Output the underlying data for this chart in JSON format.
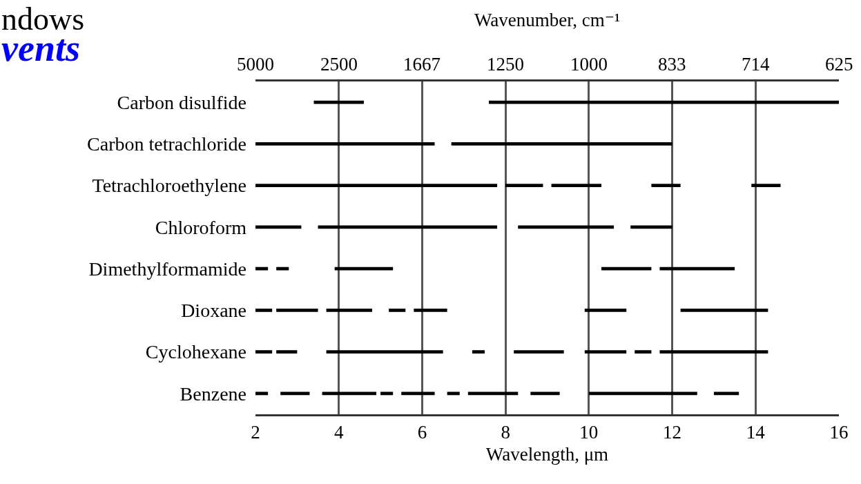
{
  "chart_data": {
    "type": "bar",
    "orientation": "horizontal",
    "xlabel": "Wavelength, μm",
    "x2label": "Wavenumber, cm⁻¹",
    "annotations": [
      "ndows",
      "vents",
      "5000",
      "2500",
      "1667",
      "1250",
      "1000",
      "833",
      "714",
      "625"
    ],
    "categories": [
      "Carbon disulfide",
      "Carbon tetrachloride",
      "Tetrachloroethylene",
      "Chloroform",
      "Dimethylformamide",
      "Dioxane",
      "Cyclohexane",
      "Benzene"
    ],
    "series": [
      {
        "color": "#000000",
        "base": [
          3.4,
          2,
          2,
          2,
          2,
          2,
          2,
          2
        ],
        "values": [
          1.2,
          4.3,
          5.8,
          1.1,
          0.3,
          0.4,
          0.4,
          0.3
        ]
      },
      {
        "color": "#000000",
        "base": [
          7.6,
          6.7,
          8.0,
          3.5,
          2.5,
          2.5,
          2.5,
          2.6
        ],
        "values": [
          8.4,
          5.3,
          0.9,
          4.3,
          0.3,
          1.0,
          0.5,
          0.7
        ]
      },
      {
        "color": "#000000",
        "base": [
          null,
          null,
          9.1,
          8.3,
          3.9,
          3.7,
          3.7,
          3.6
        ],
        "values": [
          null,
          null,
          1.2,
          2.3,
          1.4,
          1.1,
          2.8,
          1.3
        ]
      },
      {
        "color": "#000000",
        "base": [
          null,
          null,
          11.5,
          11.0,
          10.3,
          5.2,
          7.2,
          5.0
        ],
        "values": [
          null,
          null,
          0.7,
          1.0,
          1.2,
          0.4,
          0.3,
          0.3
        ]
      },
      {
        "color": "#000000",
        "base": [
          null,
          null,
          13.9,
          null,
          11.7,
          5.8,
          8.2,
          5.5
        ],
        "values": [
          null,
          null,
          0.7,
          null,
          1.8,
          0.8,
          1.2,
          0.8
        ]
      },
      {
        "color": "#000000",
        "base": [
          null,
          null,
          null,
          null,
          null,
          9.9,
          9.9,
          6.6
        ],
        "values": [
          null,
          null,
          null,
          null,
          null,
          1.0,
          1.0,
          0.3
        ]
      },
      {
        "color": "#000000",
        "base": [
          null,
          null,
          null,
          null,
          null,
          12.2,
          11.1,
          7.1
        ],
        "values": [
          null,
          null,
          null,
          null,
          null,
          2.1,
          0.4,
          1.2
        ]
      },
      {
        "color": "#000000",
        "base": [
          null,
          null,
          null,
          null,
          null,
          null,
          11.7,
          8.6
        ],
        "values": [
          null,
          null,
          null,
          null,
          null,
          null,
          2.6,
          0.7
        ]
      },
      {
        "color": "#000000",
        "base": [
          null,
          null,
          null,
          null,
          null,
          null,
          null,
          10.0
        ],
        "values": [
          null,
          null,
          null,
          null,
          null,
          null,
          null,
          2.6
        ]
      },
      {
        "color": "#000000",
        "base": [
          null,
          null,
          null,
          null,
          null,
          null,
          null,
          13.0
        ],
        "values": [
          null,
          null,
          null,
          null,
          null,
          null,
          null,
          0.6
        ]
      }
    ],
    "xlim": [
      2,
      16
    ],
    "xticks": [
      2,
      4,
      6,
      8,
      10,
      12,
      14,
      16
    ],
    "grid": "x"
  }
}
